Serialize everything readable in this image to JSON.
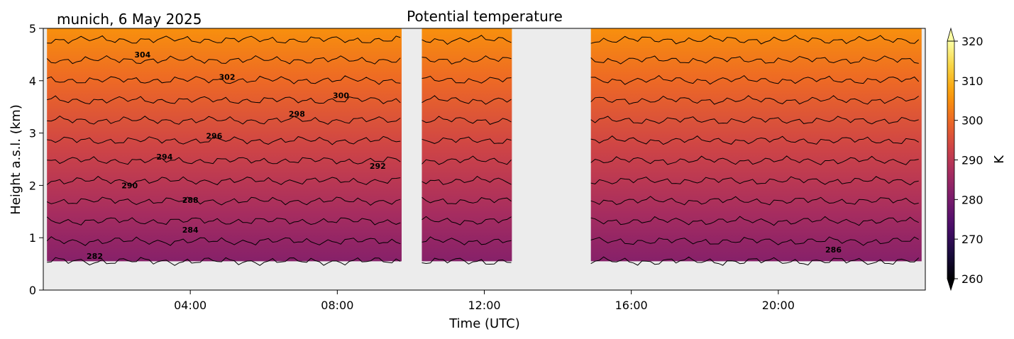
{
  "chart_data": {
    "type": "heatmap",
    "title": "Potential temperature",
    "subtitle": "munich, 6 May 2025",
    "xlabel": "Time (UTC)",
    "ylabel": "Height a.s.l. (km)",
    "colorbar_label": "K",
    "xlim_hours": [
      0,
      24
    ],
    "ylim_km": [
      0,
      5
    ],
    "x_ticks": [
      {
        "hour": 4,
        "label": "04:00"
      },
      {
        "hour": 8,
        "label": "08:00"
      },
      {
        "hour": 12,
        "label": "12:00"
      },
      {
        "hour": 16,
        "label": "16:00"
      },
      {
        "hour": 20,
        "label": "20:00"
      }
    ],
    "y_ticks": [
      {
        "value": 0,
        "label": "0"
      },
      {
        "value": 1,
        "label": "1"
      },
      {
        "value": 2,
        "label": "2"
      },
      {
        "value": 3,
        "label": "3"
      },
      {
        "value": 4,
        "label": "4"
      },
      {
        "value": 5,
        "label": "5"
      }
    ],
    "colorbar_range": [
      260,
      320
    ],
    "colorbar_ticks": [
      {
        "value": 260,
        "label": "260"
      },
      {
        "value": 270,
        "label": "270"
      },
      {
        "value": 280,
        "label": "280"
      },
      {
        "value": 290,
        "label": "290"
      },
      {
        "value": 300,
        "label": "300"
      },
      {
        "value": 310,
        "label": "310"
      },
      {
        "value": 320,
        "label": "320"
      }
    ],
    "colormap": "inferno",
    "colormap_stops": [
      "#000004",
      "#1b0c41",
      "#4a0c6b",
      "#781c6d",
      "#a52c60",
      "#cf4446",
      "#ed6925",
      "#fb9b06",
      "#f7d13d",
      "#fcffa4"
    ],
    "background_color": "#ececec",
    "data_min_height_km": 0.55,
    "data_segments": [
      {
        "start_hour": 0.1,
        "end_hour": 9.75
      },
      {
        "start_hour": 10.3,
        "end_hour": 12.75
      },
      {
        "start_hour": 14.9,
        "end_hour": 23.9
      }
    ],
    "profile": {
      "surface_temp_k": 282,
      "lapse_k_per_km": 5.2
    },
    "contour_levels": [
      282,
      284,
      286,
      288,
      290,
      292,
      294,
      296,
      298,
      300,
      302,
      304
    ],
    "contour_labels": [
      {
        "text": "282",
        "hour": 1.4,
        "height_km": 0.65
      },
      {
        "text": "284",
        "hour": 4.0,
        "height_km": 1.15
      },
      {
        "text": "286",
        "hour": 21.5,
        "height_km": 0.77
      },
      {
        "text": "288",
        "hour": 4.0,
        "height_km": 1.72
      },
      {
        "text": "290",
        "hour": 2.35,
        "height_km": 2.0
      },
      {
        "text": "292",
        "hour": 9.1,
        "height_km": 2.37
      },
      {
        "text": "294",
        "hour": 3.3,
        "height_km": 2.55
      },
      {
        "text": "296",
        "hour": 4.65,
        "height_km": 2.95
      },
      {
        "text": "298",
        "hour": 6.9,
        "height_km": 3.37
      },
      {
        "text": "300",
        "hour": 8.1,
        "height_km": 3.72
      },
      {
        "text": "302",
        "hour": 5.0,
        "height_km": 4.07
      },
      {
        "text": "304",
        "hour": 2.7,
        "height_km": 4.5
      }
    ]
  }
}
